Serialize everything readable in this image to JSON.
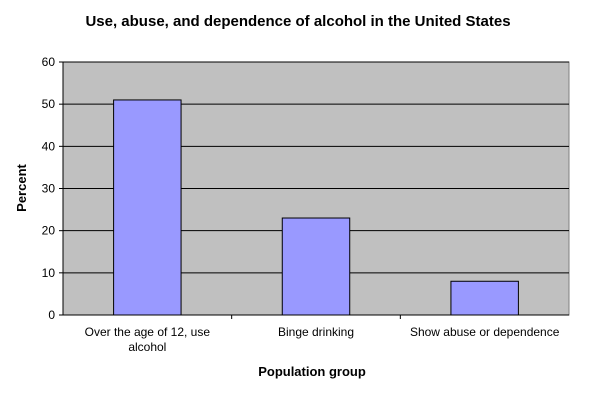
{
  "chart_data": {
    "type": "bar",
    "title": "Use, abuse, and dependence of alcohol in the United States",
    "xlabel": "Population group",
    "ylabel": "Percent",
    "categories": [
      [
        "Over the age of 12, use",
        "alcohol"
      ],
      [
        "Binge drinking"
      ],
      [
        "Show abuse or dependence"
      ]
    ],
    "values": [
      51,
      23,
      8
    ],
    "ylim": [
      0,
      60
    ],
    "yticks": [
      0,
      10,
      20,
      30,
      40,
      50,
      60
    ],
    "grid": true,
    "legend": "none",
    "colors": {
      "plot_background": "#c0c0c0",
      "bar_fill": "#9999ff",
      "bar_stroke": "#000000",
      "grid": "#000000"
    }
  }
}
